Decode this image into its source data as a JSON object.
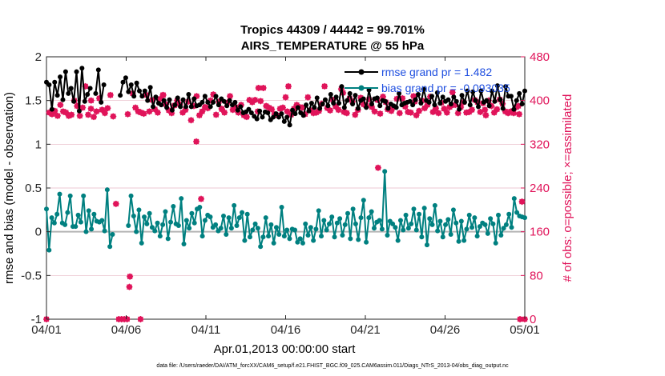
{
  "colors": {
    "rmse": "#000000",
    "bias": "#008080",
    "obs": "#e0145a",
    "grid": "#e6b8c4",
    "zero": "#b4b4b4",
    "legend_text": "#1f4fe0"
  },
  "chart_data": {
    "type": "line",
    "title": "Tropics 44309 / 44442 = 99.701%",
    "subtitle": "AIRS_TEMPERATURE @ 55 hPa",
    "xlabel": "Apr.01,2013 00:00:00 start",
    "ylabel": "rmse and bias (model - observation)",
    "ylabel_right": "# of obs: o=possible; ×=assimilated",
    "footnote": "data file: /Users/raeder/DAI/ATM_forcXX/CAM6_setup/f.e21.FHIST_BGC.f09_025.CAM6assim.011/Diags_NTrS_2013-04/obs_diag_output.nc",
    "xlim": [
      0,
      30
    ],
    "ylim": [
      -1,
      2
    ],
    "ylim_right": [
      0,
      480
    ],
    "x_ticks": [
      0,
      5,
      10,
      15,
      20,
      25,
      30
    ],
    "x_tick_labels": [
      "04/01",
      "04/06",
      "04/11",
      "04/16",
      "04/21",
      "04/26",
      "05/01"
    ],
    "y_ticks": [
      -1,
      -0.5,
      0,
      0.5,
      1,
      1.5,
      2
    ],
    "y_tick_labels": [
      "-1",
      "-0.5",
      "0",
      "0.5",
      "1",
      "1.5",
      "2"
    ],
    "y2_ticks": [
      0,
      80,
      160,
      240,
      320,
      400,
      480
    ],
    "y2_tick_labels": [
      "0",
      "80",
      "160",
      "240",
      "320",
      "400",
      "480"
    ],
    "legend": [
      "rmse grand pr = 1.482",
      "bias grand pr = -0.093035"
    ],
    "series": [
      {
        "name": "rmse",
        "values": [
          1.71,
          1.68,
          1.4,
          1.71,
          1.56,
          1.77,
          1.51,
          1.83,
          1.58,
          1.64,
          1.49,
          1.83,
          1.38,
          1.87,
          1.49,
          1.57,
          1.64,
          null,
          1.58,
          1.85,
          1.48,
          1.68,
          null,
          null,
          null,
          null,
          null,
          1.56,
          1.71,
          1.76,
          1.6,
          1.68,
          1.55,
          1.7,
          1.61,
          1.55,
          1.61,
          1.5,
          1.65,
          1.43,
          1.54,
          1.47,
          1.45,
          1.5,
          1.42,
          1.51,
          1.39,
          1.45,
          1.53,
          1.43,
          1.51,
          1.43,
          1.57,
          1.43,
          1.52,
          1.44,
          1.45,
          1.48,
          1.55,
          1.48,
          1.43,
          1.48,
          1.55,
          1.45,
          1.52,
          1.49,
          1.44,
          1.5,
          1.45,
          1.48,
          1.39,
          1.43,
          1.36,
          1.37,
          1.4,
          1.36,
          1.32,
          1.29,
          1.38,
          1.31,
          1.37,
          1.36,
          1.28,
          1.31,
          1.35,
          1.31,
          1.35,
          1.26,
          1.31,
          1.22,
          1.39,
          1.35,
          1.42,
          1.36,
          1.33,
          1.45,
          1.38,
          1.47,
          1.42,
          1.53,
          1.41,
          1.46,
          1.51,
          1.44,
          1.57,
          1.47,
          1.54,
          1.47,
          1.66,
          1.42,
          1.5,
          1.58,
          1.46,
          1.56,
          1.41,
          1.5,
          1.52,
          1.42,
          1.62,
          1.46,
          1.52,
          1.53,
          1.44,
          1.5,
          1.49,
          1.41,
          1.46,
          1.44,
          1.42,
          1.58,
          1.45,
          1.47,
          1.48,
          1.49,
          1.45,
          1.51,
          1.57,
          1.47,
          1.63,
          1.5,
          1.48,
          1.55,
          1.45,
          1.59,
          1.47,
          1.54,
          1.49,
          1.51,
          1.46,
          1.54,
          1.49,
          1.4,
          1.56,
          1.48,
          1.61,
          1.45,
          1.6,
          1.5,
          1.43,
          1.61,
          1.48,
          1.5,
          1.44,
          1.61,
          1.49,
          1.67,
          1.51,
          1.41,
          1.66,
          1.55,
          1.55,
          1.4,
          1.5,
          1.58,
          1.46,
          1.61
        ]
      },
      {
        "name": "bias",
        "values": [
          0.26,
          -0.21,
          0.16,
          0.1,
          0.2,
          0.43,
          0.1,
          0.08,
          0.22,
          0.41,
          0.06,
          0.06,
          0.19,
          0.11,
          0.41,
          0.0,
          0.24,
          0.03,
          0.2,
          0.12,
          0.11,
          0.13,
          0.01,
          0.48,
          -0.17,
          -0.03,
          null,
          null,
          null,
          null,
          null,
          0.07,
          0.41,
          0.18,
          0.0,
          0.25,
          -0.13,
          0.17,
          0.09,
          0.21,
          0.05,
          0.01,
          0.1,
          -0.05,
          0.08,
          0.23,
          -0.08,
          0.11,
          0.29,
          0.09,
          0.07,
          0.38,
          -0.14,
          0.13,
          0.04,
          0.21,
          0.1,
          0.26,
          0.28,
          -0.05,
          0.13,
          0.19,
          0.17,
          0.05,
          0.08,
          0.01,
          0.04,
          0.18,
          -0.03,
          0.16,
          0.04,
          0.3,
          0.07,
          0.16,
          0.22,
          -0.1,
          0.2,
          -0.06,
          0.02,
          0.09,
          0.04,
          -0.17,
          -0.06,
          0.16,
          -0.05,
          0.08,
          -0.13,
          0.05,
          -0.03,
          0.28,
          -0.05,
          0.02,
          -0.08,
          0.03,
          0.02,
          -0.12,
          -0.08,
          -0.13,
          0.09,
          -0.04,
          0.05,
          -0.1,
          0.03,
          0.24,
          -0.05,
          0.13,
          0.02,
          0.09,
          0.17,
          -0.06,
          0.1,
          0.15,
          -0.04,
          0.08,
          0.21,
          -0.08,
          0.26,
          0.09,
          -0.09,
          0.16,
          0.36,
          -0.12,
          0.16,
          0.23,
          0.04,
          0.11,
          0.13,
          0.03,
          0.69,
          -0.04,
          0.12,
          0.09,
          0.05,
          -0.1,
          0.13,
          0.02,
          0.19,
          0.04,
          0.09,
          0.26,
          0.02,
          0.2,
          -0.06,
          0.27,
          -0.15,
          0.15,
          0.08,
          0.3,
          0.01,
          0.12,
          -0.06,
          0.08,
          0.14,
          -0.03,
          0.25,
          0.1,
          -0.11,
          0.12,
          -0.1,
          0.03,
          0.19,
          0.05,
          0.16,
          -0.05,
          0.06,
          0.1,
          0.08,
          -0.02,
          0.15,
          0.09,
          -0.13,
          0.19,
          -0.04,
          0.04,
          0.08,
          0.2,
          0.05,
          0.38,
          0.22,
          0.18,
          0.17,
          0.16
        ]
      },
      {
        "name": "obs_possible",
        "axis": "right",
        "values": [
          0,
          378,
          375,
          381,
          372,
          392,
          380,
          378,
          372,
          374,
          400,
          390,
          372,
          387,
          426,
          374,
          385,
          370,
          380,
          404,
          383,
          377,
          386,
          410,
          371,
          211,
          0,
          0,
          0,
          0,
          78,
          413,
          387,
          380,
          378,
          376,
          410,
          380,
          401,
          384,
          378,
          403,
          410,
          393,
          382,
          377,
          391,
          400,
          393,
          378,
          383,
          398,
          364,
          390,
          408,
          373,
          380,
          388,
          386,
          400,
          411,
          374,
          398,
          385,
          378,
          396,
          408,
          383,
          388,
          378,
          392,
          373,
          370,
          401,
          397,
          401,
          380,
          399,
          423,
          390,
          387,
          384,
          375,
          373,
          385,
          387,
          406,
          426,
          374,
          385,
          392,
          388,
          387,
          375,
          406,
          382,
          377,
          378,
          381,
          394,
          426,
          386,
          382,
          401,
          389,
          383,
          421,
          379,
          377,
          404,
          398,
          374,
          383,
          405,
          393,
          391,
          402,
          388,
          380,
          401,
          376,
          407,
          397,
          385,
          381,
          388,
          403,
          377,
          404,
          389,
          379,
          378,
          408,
          373,
          381,
          400,
          386,
          392,
          407,
          379,
          386,
          377,
          396,
          385,
          378,
          388,
          415,
          392,
          377,
          388,
          397,
          378,
          379,
          383,
          401,
          397,
          379,
          395,
          373,
          400,
          390,
          378,
          384,
          402,
          394,
          380,
          377,
          380,
          377,
          388,
          375,
          215,
          0
        ]
      }
    ],
    "obs_assimilated_markers": [
      {
        "x": 2.8,
        "value": 400
      },
      {
        "x": 5.1,
        "value": 375
      },
      {
        "x": 7.3,
        "value": 410
      },
      {
        "x": 11.0,
        "value": 384
      },
      {
        "x": 13.3,
        "value": 423
      },
      {
        "x": 15.1,
        "value": 380
      },
      {
        "x": 18.6,
        "value": 414
      },
      {
        "x": 21.4,
        "value": 384
      },
      {
        "x": 23.1,
        "value": 398
      },
      {
        "x": 25.4,
        "value": 391
      },
      {
        "x": 27.5,
        "value": 383
      },
      {
        "x": 29.6,
        "value": 390
      },
      {
        "x": 9.7,
        "value": 220
      },
      {
        "x": 9.4,
        "value": 325
      },
      {
        "x": 20.8,
        "value": 277
      },
      {
        "x": 5.2,
        "value": 59
      },
      {
        "x": 5.9,
        "value": 0
      },
      {
        "x": 29.7,
        "value": 0
      }
    ]
  }
}
